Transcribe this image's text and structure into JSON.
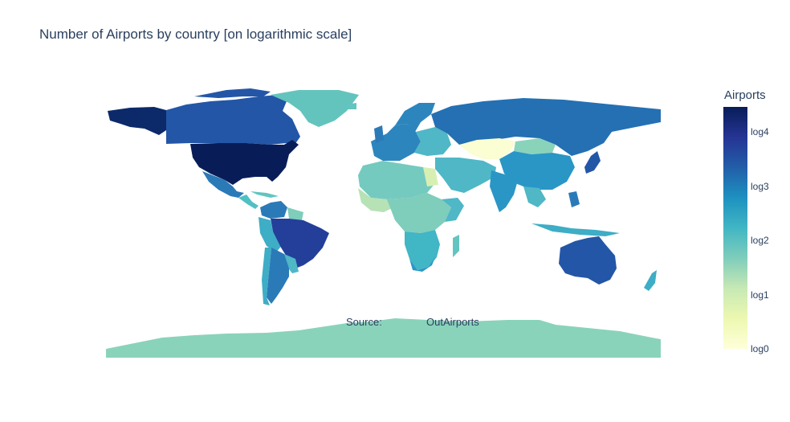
{
  "title": "Number of Airports by country [on logarithmic scale]",
  "annotation": {
    "label": "Source:",
    "value": "OutAirports"
  },
  "colorbar": {
    "title": "Airports",
    "ticks": [
      "log0",
      "log1",
      "log2",
      "log3",
      "log4"
    ],
    "scale_colors": [
      "#ffffd9",
      "#edf8b1",
      "#c7e9b4",
      "#7fcdbb",
      "#41b6c4",
      "#1d91c0",
      "#225ea8",
      "#253494",
      "#081d58"
    ]
  },
  "map_data": {
    "type": "choropleth",
    "projection": "equirectangular",
    "value_scale": "log10",
    "approximate_log_values": {
      "United States": 4.3,
      "Alaska region (USA)": 4.3,
      "Brazil": 3.7,
      "Australia": 3.4,
      "Canada": 3.4,
      "Russia": 3.0,
      "Argentina": 3.0,
      "Mexico": 3.0,
      "Japan": 3.0,
      "China": 2.7,
      "India": 2.6,
      "South Africa": 2.8,
      "Greenland": 1.8,
      "Kazakhstan": 0.1,
      "Egypt": 1.1,
      "Antarctica": 1.8
    }
  }
}
